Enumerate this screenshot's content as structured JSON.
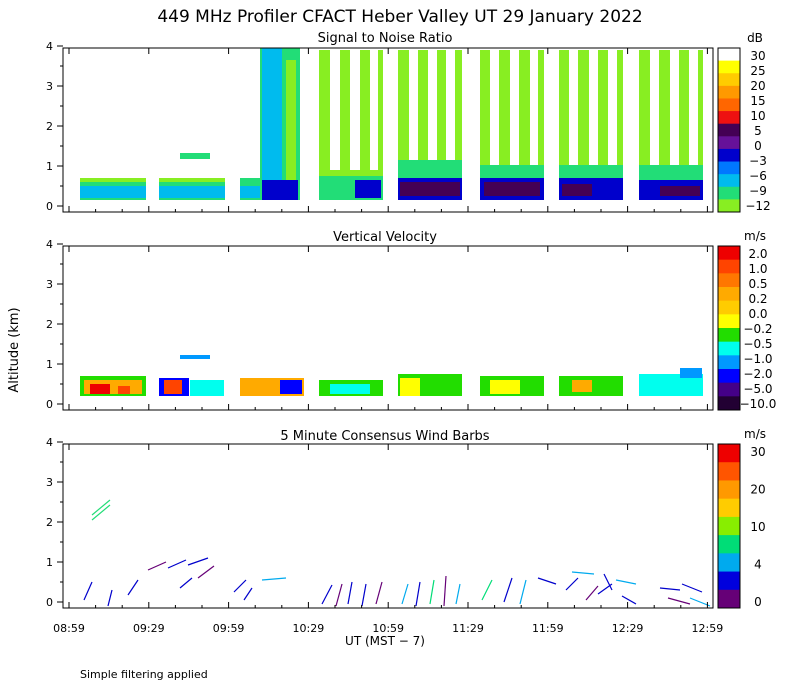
{
  "title": "449 MHz Profiler CFACT Heber Valley UT 29 January 2022",
  "xlabel": "UT  (MST − 7)",
  "ylabel": "Altitude (km)",
  "footnote": "Simple filtering applied",
  "x_ticks": [
    "08:59",
    "09:29",
    "09:59",
    "10:29",
    "10:59",
    "11:29",
    "11:59",
    "12:29",
    "12:59"
  ],
  "y_ticks": [
    "0",
    "1",
    "2",
    "3",
    "4"
  ],
  "chart_data": [
    {
      "type": "heatmap",
      "title": "Signal to Noise Ratio",
      "unit": "dB",
      "xlim": [
        "08:59",
        "13:03"
      ],
      "ylim": [
        0,
        4
      ],
      "colorbar": {
        "labels": [
          "30",
          "25",
          "20",
          "15",
          "10",
          "5",
          "0",
          "−3",
          "−6",
          "−9",
          "−12"
        ],
        "colors": [
          "#ffffff",
          "#ffff00",
          "#ffcc00",
          "#ff9900",
          "#ff6600",
          "#ee1111",
          "#440055",
          "#661199",
          "#0000cc",
          "#0077ff",
          "#00bbee",
          "#22dd77",
          "#88ee22"
        ]
      },
      "segments": [
        {
          "start": "09:04",
          "end": "09:29",
          "top_km": 0.85
        },
        {
          "start": "09:33",
          "end": "09:56",
          "top_km": 0.85
        },
        {
          "start": "10:03",
          "end": "10:11",
          "top_km": 0.8
        },
        {
          "start": "10:11",
          "end": "10:29",
          "top_km": 4.0
        },
        {
          "start": "10:33",
          "end": "10:59",
          "top_km": 4.0
        },
        {
          "start": "11:03",
          "end": "11:29",
          "top_km": 4.0
        },
        {
          "start": "11:33",
          "end": "11:56",
          "top_km": 4.0
        },
        {
          "start": "12:03",
          "end": "12:26",
          "top_km": 4.0
        },
        {
          "start": "12:33",
          "end": "12:58",
          "top_km": 4.0
        }
      ]
    },
    {
      "type": "heatmap",
      "title": "Vertical Velocity",
      "unit": "m/s",
      "xlim": [
        "08:59",
        "13:03"
      ],
      "ylim": [
        0,
        4
      ],
      "colorbar": {
        "labels": [
          "2.0",
          "1.0",
          "0.5",
          "0.2",
          "0.0",
          "−0.2",
          "−0.5",
          "−1.0",
          "−2.0",
          "−5.0",
          "−10.0"
        ],
        "colors": [
          "#ee0000",
          "#ff4400",
          "#ff7700",
          "#ffaa00",
          "#ffcc00",
          "#ffff00",
          "#22dd00",
          "#00ffee",
          "#0099ff",
          "#0000ff",
          "#440088",
          "#220033"
        ]
      },
      "segments": [
        {
          "start": "09:04",
          "end": "09:29",
          "top_km": 0.85
        },
        {
          "start": "09:33",
          "end": "09:56",
          "top_km": 0.85
        },
        {
          "start": "10:03",
          "end": "10:26",
          "top_km": 0.85
        },
        {
          "start": "10:33",
          "end": "10:56",
          "top_km": 0.85
        },
        {
          "start": "11:03",
          "end": "11:26",
          "top_km": 0.9
        },
        {
          "start": "11:33",
          "end": "11:56",
          "top_km": 0.85
        },
        {
          "start": "12:03",
          "end": "12:26",
          "top_km": 0.85
        },
        {
          "start": "12:33",
          "end": "12:59",
          "top_km": 0.9
        }
      ]
    },
    {
      "type": "wind-barbs",
      "title": "5 Minute Consensus Wind Barbs",
      "unit": "m/s",
      "xlim": [
        "08:59",
        "13:03"
      ],
      "ylim": [
        0,
        4
      ],
      "colorbar": {
        "labels": [
          "30",
          "20",
          "10",
          "4",
          "0"
        ],
        "colors": [
          "#ee0000",
          "#ff5500",
          "#ff9900",
          "#ffcc00",
          "#88ee00",
          "#00dd77",
          "#00aaee",
          "#0000dd",
          "#660077"
        ]
      }
    }
  ]
}
